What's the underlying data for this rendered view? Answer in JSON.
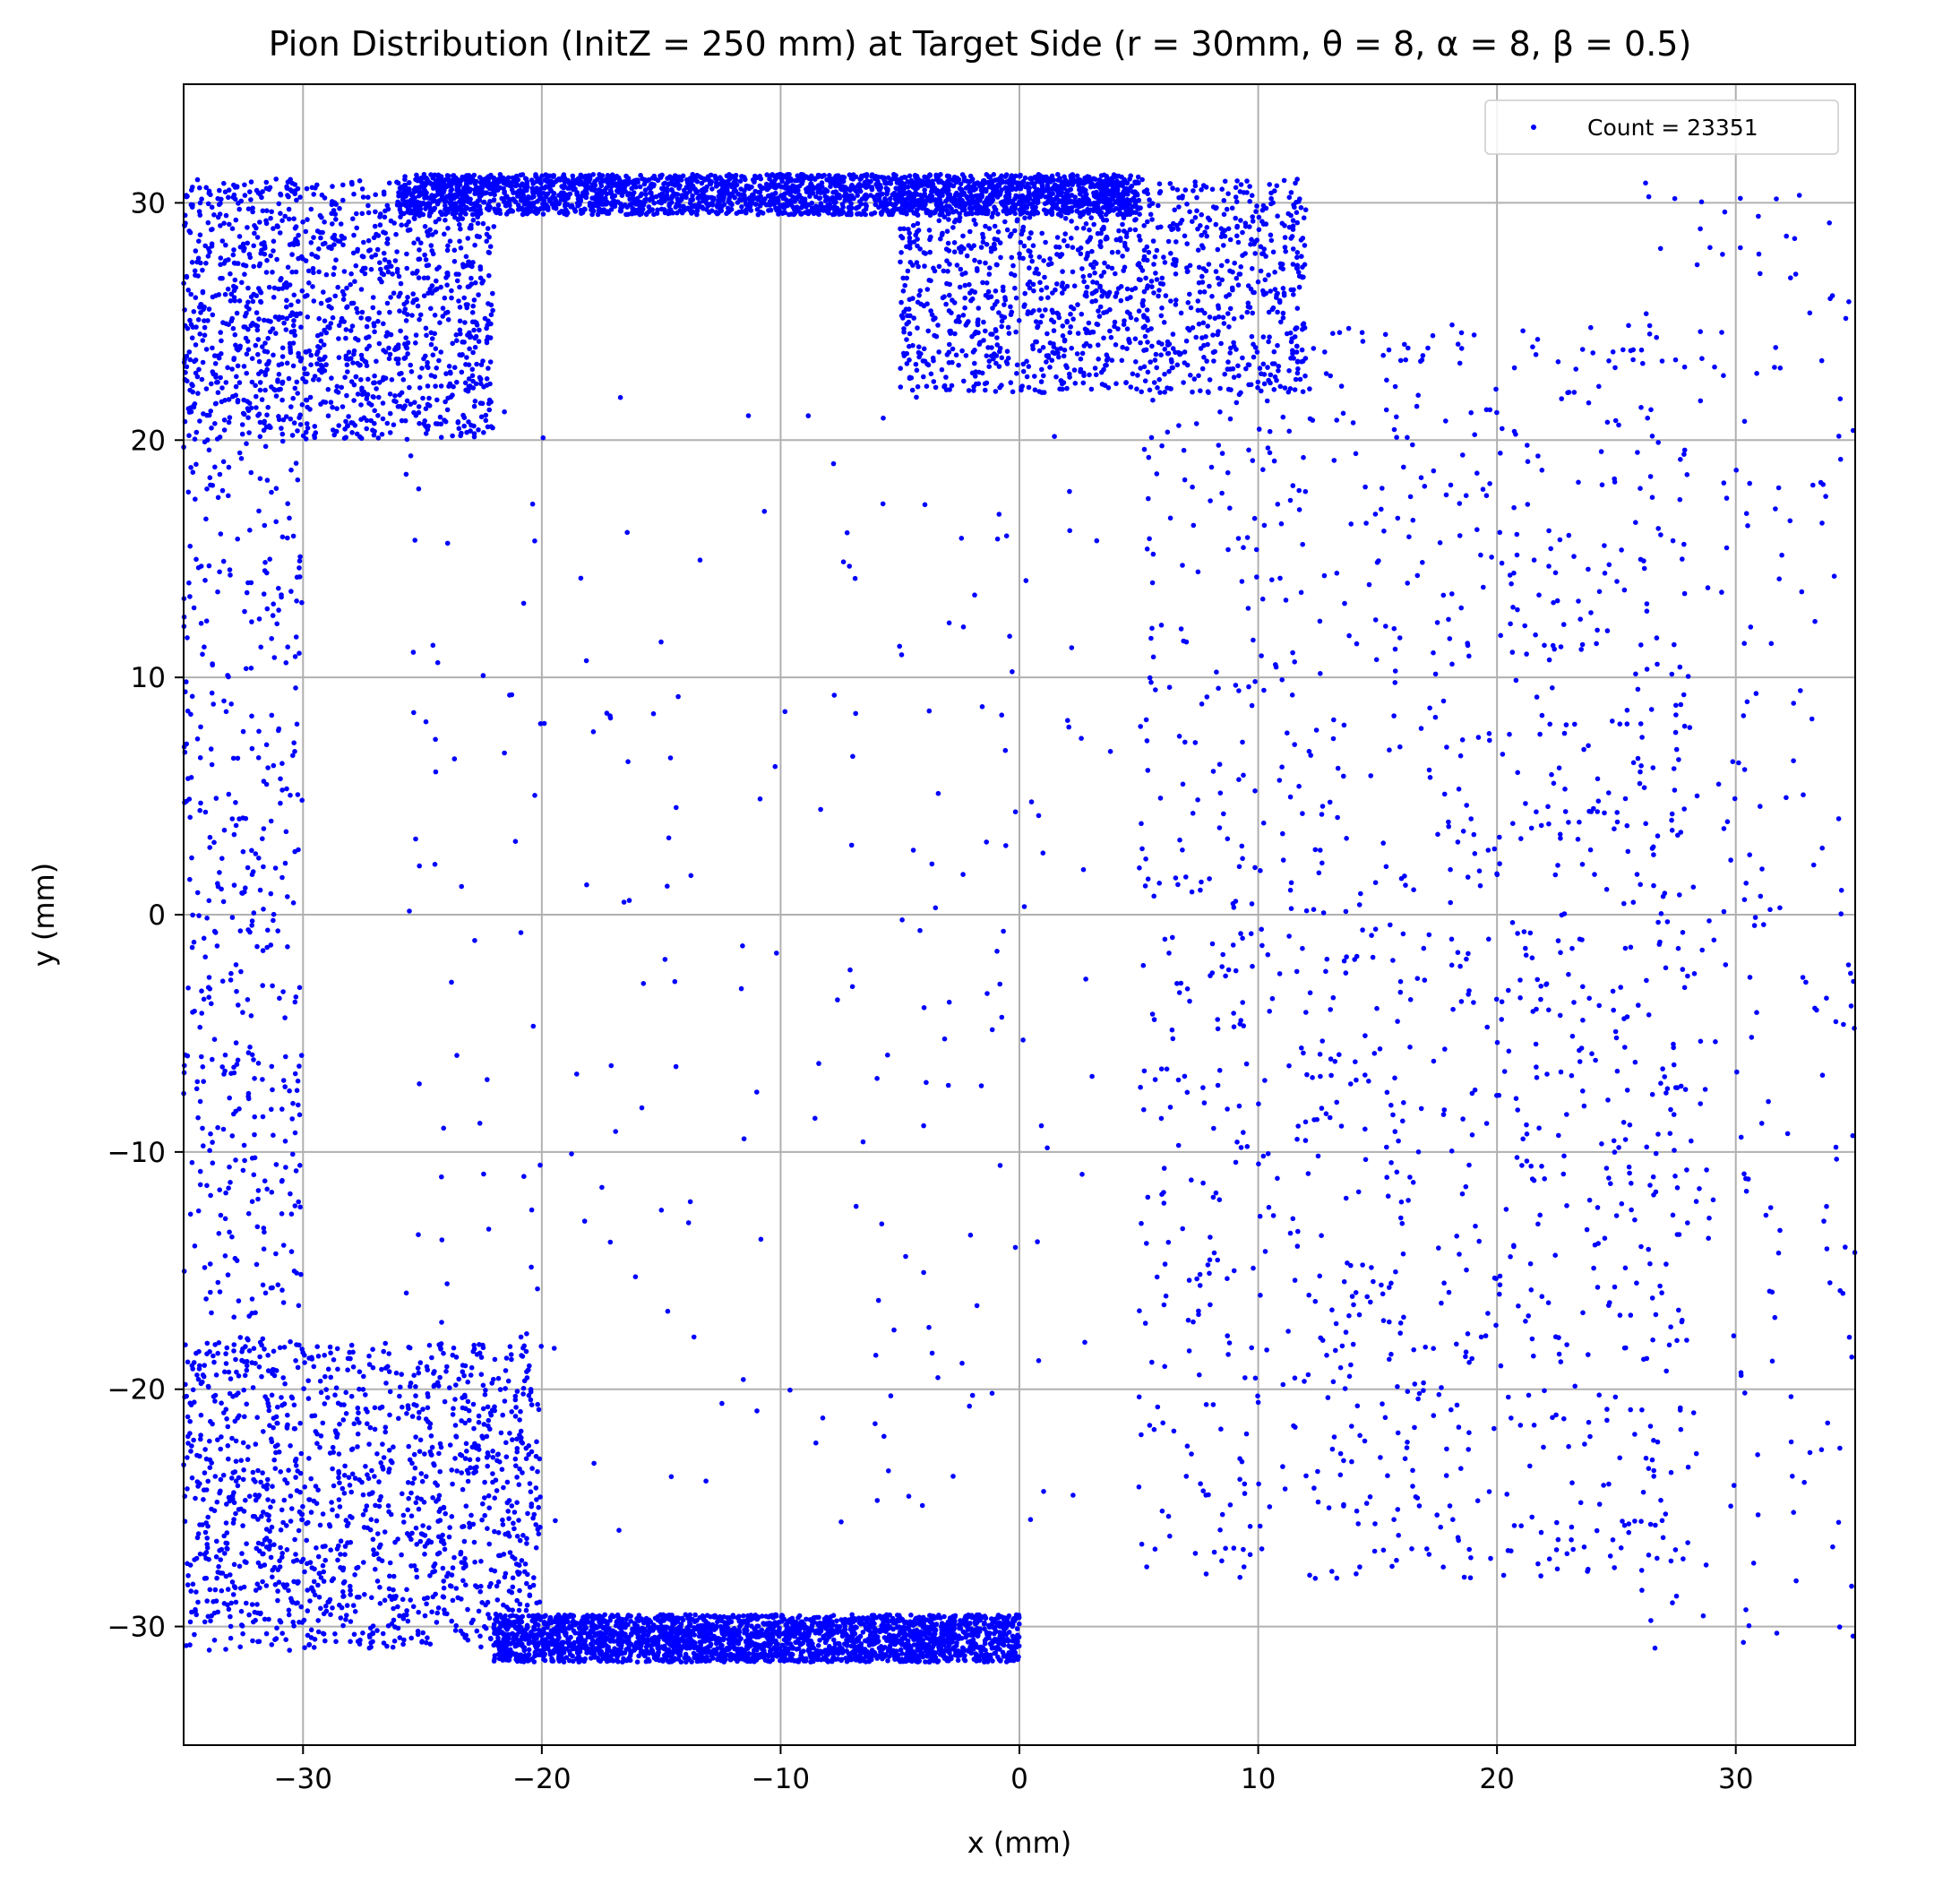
{
  "chart_data": {
    "type": "scatter",
    "title": "Pion Distribution (InitZ = 250 mm) at Target Side (r = 30mm, θ = 8, α = 8, β = 0.5)",
    "xlabel": "x (mm)",
    "ylabel": "y (mm)",
    "xlim": [
      -35,
      35
    ],
    "ylim": [
      -35,
      35
    ],
    "x_ticks": [
      -30,
      -20,
      -10,
      0,
      10,
      20,
      30
    ],
    "y_ticks": [
      -30,
      -20,
      -10,
      0,
      10,
      20,
      30
    ],
    "x_tick_labels": [
      "−30",
      "−20",
      "−10",
      "0",
      "10",
      "20",
      "30"
    ],
    "y_tick_labels": [
      "−30",
      "−20",
      "−10",
      "0",
      "10",
      "20",
      "30"
    ],
    "grid": true,
    "legend_position": "top-right",
    "series": [
      {
        "name": "Count = 23351",
        "color": "#0000ff",
        "marker": "dot",
        "count": 23351,
        "density_regions": [
          {
            "label": "top band",
            "x": [
              -26,
              5
            ],
            "y": [
              29.5,
              31.2
            ],
            "relative_density": "very high"
          },
          {
            "label": "upper-left arc",
            "x": [
              -35,
              -22
            ],
            "y": [
              20,
              31
            ],
            "relative_density": "high"
          },
          {
            "label": "upper-middle arc",
            "x": [
              -5,
              12
            ],
            "y": [
              22,
              31
            ],
            "relative_density": "high"
          },
          {
            "label": "bottom band",
            "x": [
              -22,
              0
            ],
            "y": [
              -31.5,
              -29.5
            ],
            "relative_density": "very high"
          },
          {
            "label": "lower-left arc",
            "x": [
              -35,
              -20
            ],
            "y": [
              -31,
              -18
            ],
            "relative_density": "high"
          },
          {
            "label": "right lobe",
            "x": [
              5,
              28
            ],
            "y": [
              -28,
              25
            ],
            "relative_density": "high"
          },
          {
            "label": "left edge",
            "x": [
              -35,
              -30
            ],
            "y": [
              -20,
              20
            ],
            "relative_density": "medium"
          },
          {
            "label": "central void",
            "x": [
              -26,
              4
            ],
            "y": [
              -26,
              22
            ],
            "relative_density": "low"
          },
          {
            "label": "far right sparse",
            "x": [
              26,
              35
            ],
            "y": [
              -31,
              31
            ],
            "relative_density": "low"
          }
        ]
      }
    ]
  }
}
